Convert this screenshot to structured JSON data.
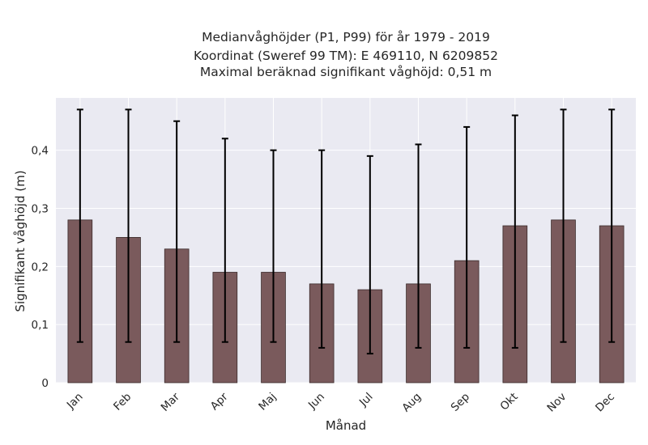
{
  "chart_data": {
    "type": "bar",
    "title_lines": [
      "Medianvåghöjder (P1, P99) för år 1979 - 2019",
      "Koordinat (Sweref 99 TM): E 469110, N 6209852",
      "Maximal beräknad signifikant våghöjd: 0,51 m"
    ],
    "xlabel": "Månad",
    "ylabel": "Signifikant våghöjd (m)",
    "categories": [
      "Jan",
      "Feb",
      "Mar",
      "Apr",
      "Maj",
      "Jun",
      "Jul",
      "Aug",
      "Sep",
      "Okt",
      "Nov",
      "Dec"
    ],
    "values": [
      0.28,
      0.25,
      0.23,
      0.19,
      0.19,
      0.17,
      0.16,
      0.17,
      0.21,
      0.27,
      0.28,
      0.27
    ],
    "err_low": [
      0.07,
      0.07,
      0.07,
      0.07,
      0.07,
      0.06,
      0.05,
      0.06,
      0.06,
      0.06,
      0.07,
      0.07
    ],
    "err_high": [
      0.47,
      0.47,
      0.45,
      0.42,
      0.4,
      0.4,
      0.39,
      0.41,
      0.44,
      0.46,
      0.47,
      0.47
    ],
    "yticks": [
      0,
      0.1,
      0.2,
      0.3,
      0.4
    ],
    "ytick_labels": [
      "0",
      "0,1",
      "0,2",
      "0,3",
      "0,4"
    ],
    "ylim": [
      0,
      0.49
    ],
    "grid": true,
    "colors": {
      "bar": "#7a5a5c",
      "bar_edge": "#3a2a2a",
      "error": "#000000",
      "plot_bg": "#eaeaf2",
      "grid": "#ffffff"
    }
  }
}
